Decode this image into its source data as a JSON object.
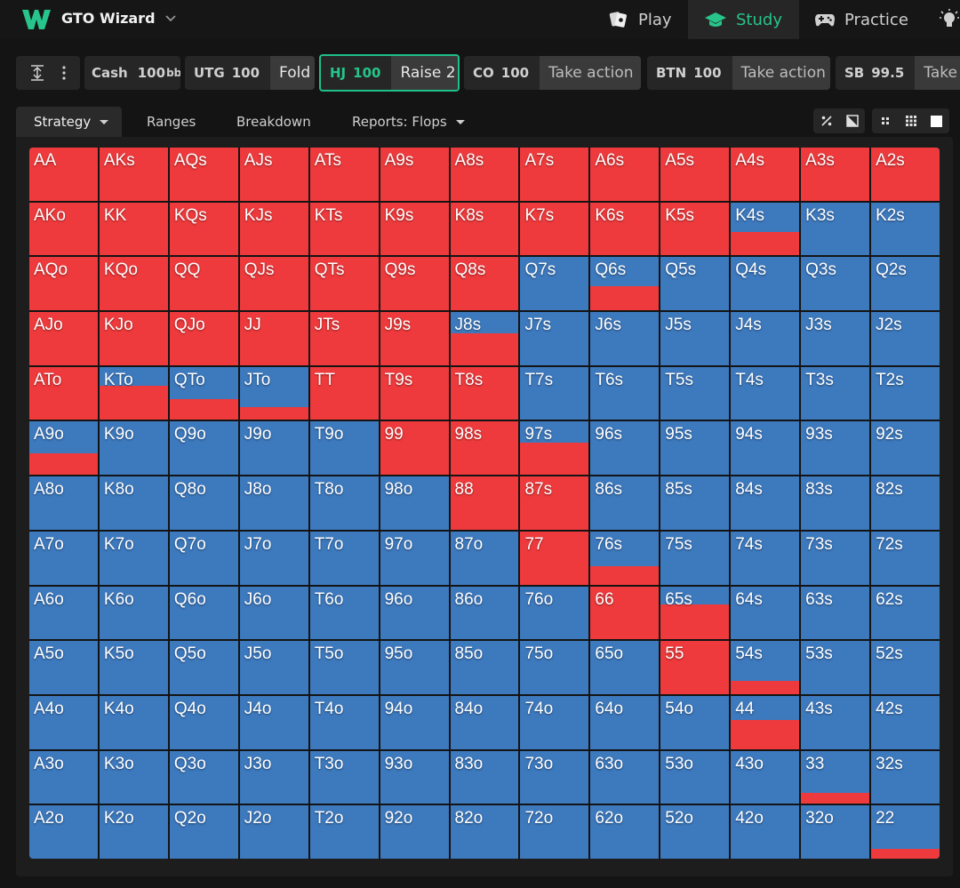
{
  "app": {
    "title": "GTO Wizard"
  },
  "nav": {
    "play": "Play",
    "study": "Study",
    "practice": "Practice"
  },
  "colors": {
    "raise": "#ee3a3c",
    "fold": "#3d79bd",
    "accent": "#27c48b"
  },
  "game": {
    "type_label": "Cash",
    "stack": "100",
    "stack_unit": "bb"
  },
  "positions": [
    {
      "pos": "UTG",
      "stack": "100",
      "action": "Fold"
    },
    {
      "pos": "HJ",
      "stack": "100",
      "action": "Raise 2"
    },
    {
      "pos": "CO",
      "stack": "100",
      "action": "Take action"
    },
    {
      "pos": "BTN",
      "stack": "100",
      "action": "Take action"
    },
    {
      "pos": "SB",
      "stack": "99.5",
      "action": "Take"
    }
  ],
  "tabs": {
    "strategy": "Strategy",
    "ranges": "Ranges",
    "breakdown": "Breakdown",
    "reports": "Reports: Flops"
  },
  "matrix": {
    "ranks": [
      "A",
      "K",
      "Q",
      "J",
      "T",
      "9",
      "8",
      "7",
      "6",
      "5",
      "4",
      "3",
      "2"
    ],
    "raise_freq": [
      [
        1,
        1,
        1,
        1,
        1,
        1,
        1,
        1,
        1,
        1,
        1,
        1,
        1
      ],
      [
        1,
        1,
        1,
        1,
        1,
        1,
        1,
        1,
        1,
        1,
        0.45,
        0,
        0
      ],
      [
        1,
        1,
        1,
        1,
        1,
        1,
        1,
        0,
        0.45,
        0,
        0,
        0,
        0
      ],
      [
        1,
        1,
        1,
        1,
        1,
        1,
        0.6,
        0,
        0,
        0,
        0,
        0,
        0
      ],
      [
        1,
        0.65,
        0.4,
        0.25,
        1,
        1,
        1,
        0,
        0,
        0,
        0,
        0,
        0
      ],
      [
        0.4,
        0,
        0,
        0,
        0,
        1,
        1,
        0.6,
        0,
        0,
        0,
        0,
        0
      ],
      [
        0,
        0,
        0,
        0,
        0,
        0,
        1,
        1,
        0,
        0,
        0,
        0,
        0
      ],
      [
        0,
        0,
        0,
        0,
        0,
        0,
        0,
        1,
        0.35,
        0,
        0,
        0,
        0
      ],
      [
        0,
        0,
        0,
        0,
        0,
        0,
        0,
        0,
        1,
        0.65,
        0,
        0,
        0
      ],
      [
        0,
        0,
        0,
        0,
        0,
        0,
        0,
        0,
        0,
        1,
        0.25,
        0,
        0
      ],
      [
        0,
        0,
        0,
        0,
        0,
        0,
        0,
        0,
        0,
        0,
        0.55,
        0,
        0
      ],
      [
        0,
        0,
        0,
        0,
        0,
        0,
        0,
        0,
        0,
        0,
        0,
        0.2,
        0
      ],
      [
        0,
        0,
        0,
        0,
        0,
        0,
        0,
        0,
        0,
        0,
        0,
        0,
        0.18
      ]
    ]
  }
}
